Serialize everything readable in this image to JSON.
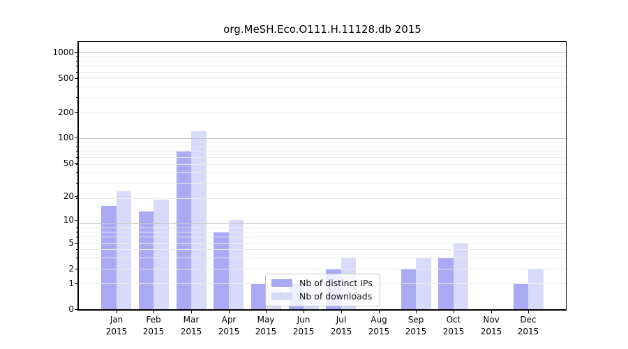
{
  "chart_data": {
    "type": "bar",
    "title": "org.MeSH.Eco.O111.H.11128.db 2015",
    "categories": [
      "Jan",
      "Feb",
      "Mar",
      "Apr",
      "May",
      "Jun",
      "Jul",
      "Aug",
      "Sep",
      "Oct",
      "Nov",
      "Dec"
    ],
    "x_tick_second_line": "2015",
    "series": [
      {
        "name": "Nb of distinct IPs",
        "color": "#a9a9f4",
        "values": [
          15,
          13,
          70,
          7,
          1,
          1,
          2,
          0,
          2,
          3,
          0,
          1
        ]
      },
      {
        "name": "Nb of downloads",
        "color": "#d9d9fa",
        "values": [
          23,
          18,
          120,
          10,
          1,
          1,
          3,
          0,
          3,
          5,
          0,
          2
        ]
      }
    ],
    "xlabel": "",
    "ylabel": "",
    "y_ticks": [
      0,
      1,
      2,
      5,
      10,
      20,
      50,
      100,
      200,
      500,
      1000
    ],
    "y_scale": "log10(value+1)",
    "ylim": [
      0,
      1333
    ],
    "grid": true,
    "legend_position": "inside-bottom-center",
    "colors": {
      "major_grid": "#c6c6c6",
      "minor_grid": "#ebebeb",
      "axis": "#000000",
      "background": "#ffffff"
    }
  }
}
